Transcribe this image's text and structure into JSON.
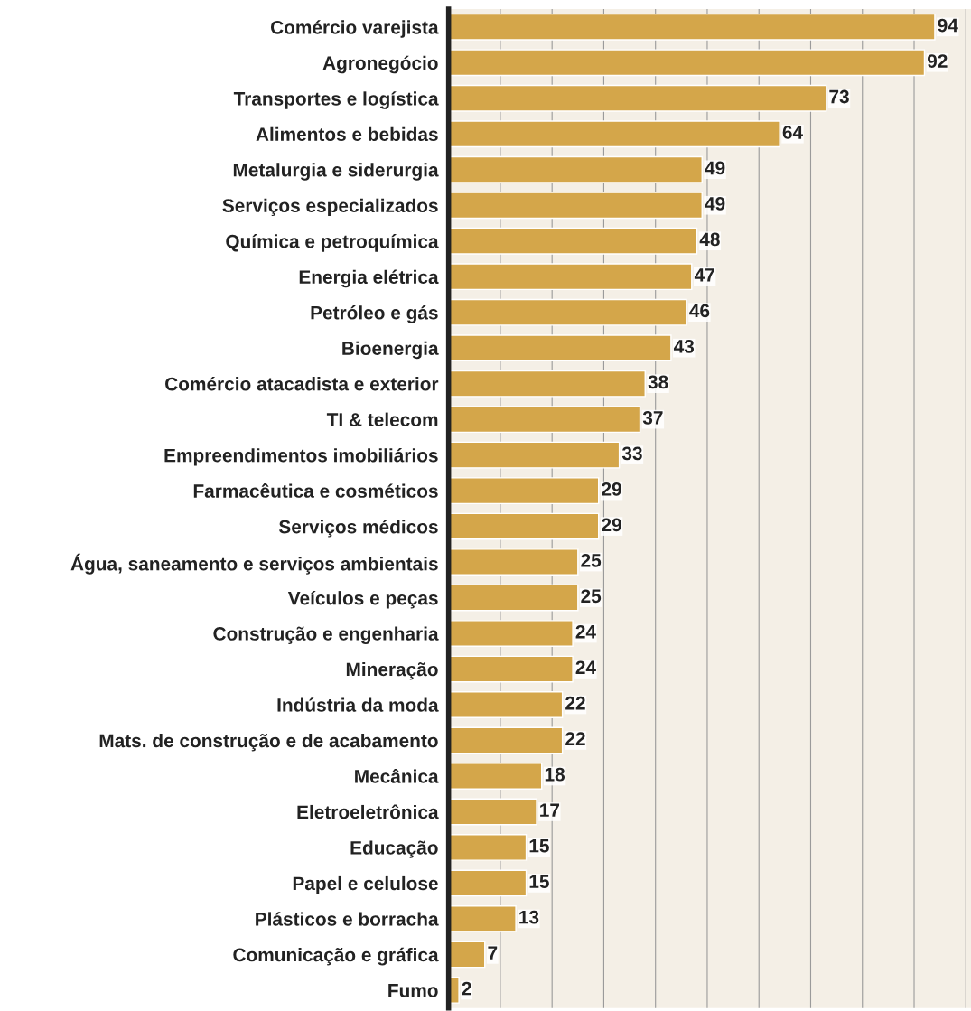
{
  "chart_data": {
    "type": "bar",
    "orientation": "horizontal",
    "data_labels": true,
    "grid": "x",
    "tick_labels": "y",
    "color": "#d4a64a",
    "categories": [
      "Comércio varejista",
      "Agronegócio",
      "Transportes e logística",
      "Alimentos e bebidas",
      "Metalurgia e siderurgia",
      "Serviços especializados",
      "Química e petroquímica",
      "Energia elétrica",
      "Petróleo e gás",
      "Bioenergia",
      "Comércio atacadista e exterior",
      "TI & telecom",
      "Empreendimentos imobiliários",
      "Farmacêutica e cosméticos",
      "Serviços médicos",
      "Água, saneamento e serviços ambientais",
      "Veículos e peças",
      "Construção e engenharia",
      "Mineração",
      "Indústria da moda",
      "Mats. de construção e de acabamento",
      "Mecânica",
      "Eletroeletrônica",
      "Educação",
      "Papel e celulose",
      "Plásticos e borracha",
      "Comunicação e gráfica",
      "Fumo"
    ],
    "values": [
      94,
      92,
      73,
      64,
      49,
      49,
      48,
      47,
      46,
      43,
      38,
      37,
      33,
      29,
      29,
      25,
      25,
      24,
      24,
      22,
      22,
      18,
      17,
      15,
      15,
      13,
      7,
      2
    ],
    "xlim": [
      0,
      101
    ],
    "xticks": [
      0,
      10,
      20,
      30,
      40,
      50,
      60,
      70,
      80,
      90,
      100
    ]
  }
}
